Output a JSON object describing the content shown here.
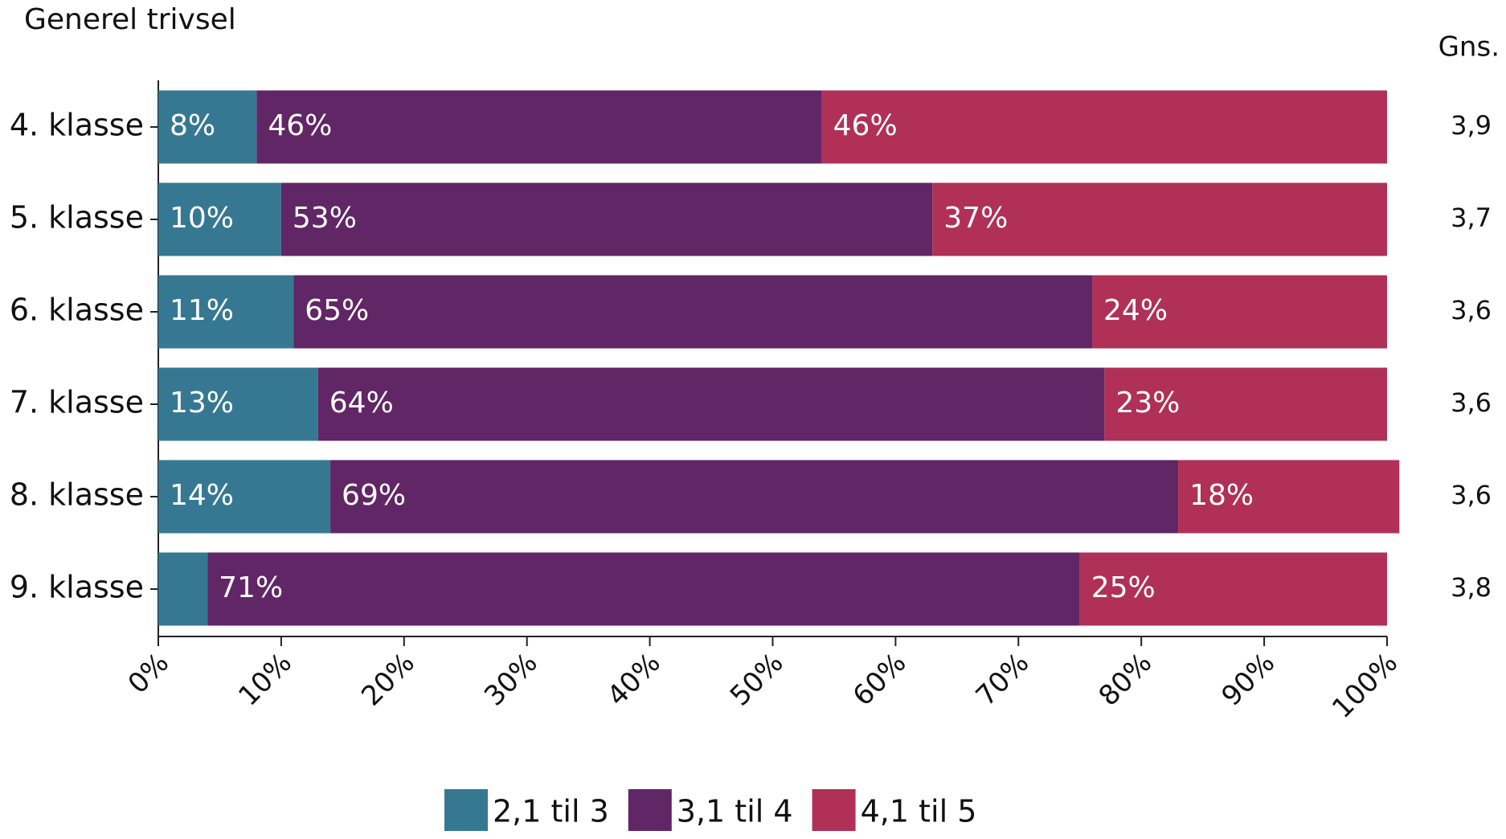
{
  "chart_data": {
    "type": "stacked-bar-horizontal",
    "title": "Generel trivsel",
    "categories": [
      "4. klasse",
      "5. klasse",
      "6. klasse",
      "7. klasse",
      "8. klasse",
      "9. klasse"
    ],
    "series": [
      {
        "name": "2,1 til 3",
        "color": "#367892",
        "values": [
          8,
          10,
          11,
          13,
          14,
          4
        ],
        "value_labels": [
          "8%",
          "10%",
          "11%",
          "13%",
          "14%",
          null
        ]
      },
      {
        "name": "3,1 til 4",
        "color": "#612666",
        "values": [
          46,
          53,
          65,
          64,
          69,
          71
        ],
        "value_labels": [
          "46%",
          "53%",
          "65%",
          "64%",
          "69%",
          "71%"
        ]
      },
      {
        "name": "4,1 til 5",
        "color": "#b03057",
        "values": [
          46,
          37,
          24,
          23,
          18,
          25
        ],
        "value_labels": [
          "46%",
          "37%",
          "24%",
          "23%",
          "18%",
          "25%"
        ]
      }
    ],
    "xlim": [
      0,
      100
    ],
    "xticks": [
      {
        "value": 0,
        "label": "0%"
      },
      {
        "value": 10,
        "label": "10%"
      },
      {
        "value": 20,
        "label": "20%"
      },
      {
        "value": 30,
        "label": "30%"
      },
      {
        "value": 40,
        "label": "40%"
      },
      {
        "value": 50,
        "label": "50%"
      },
      {
        "value": 60,
        "label": "60%"
      },
      {
        "value": 70,
        "label": "70%"
      },
      {
        "value": 80,
        "label": "80%"
      },
      {
        "value": 90,
        "label": "90%"
      },
      {
        "value": 100,
        "label": "100%"
      }
    ],
    "averages": {
      "title": "Gns.",
      "values": [
        3.9,
        3.7,
        3.6,
        3.6,
        3.6,
        3.8
      ],
      "value_labels": [
        "3,9",
        "3,7",
        "3,6",
        "3,6",
        "3,6",
        "3,8"
      ]
    },
    "legend": "bottom"
  }
}
